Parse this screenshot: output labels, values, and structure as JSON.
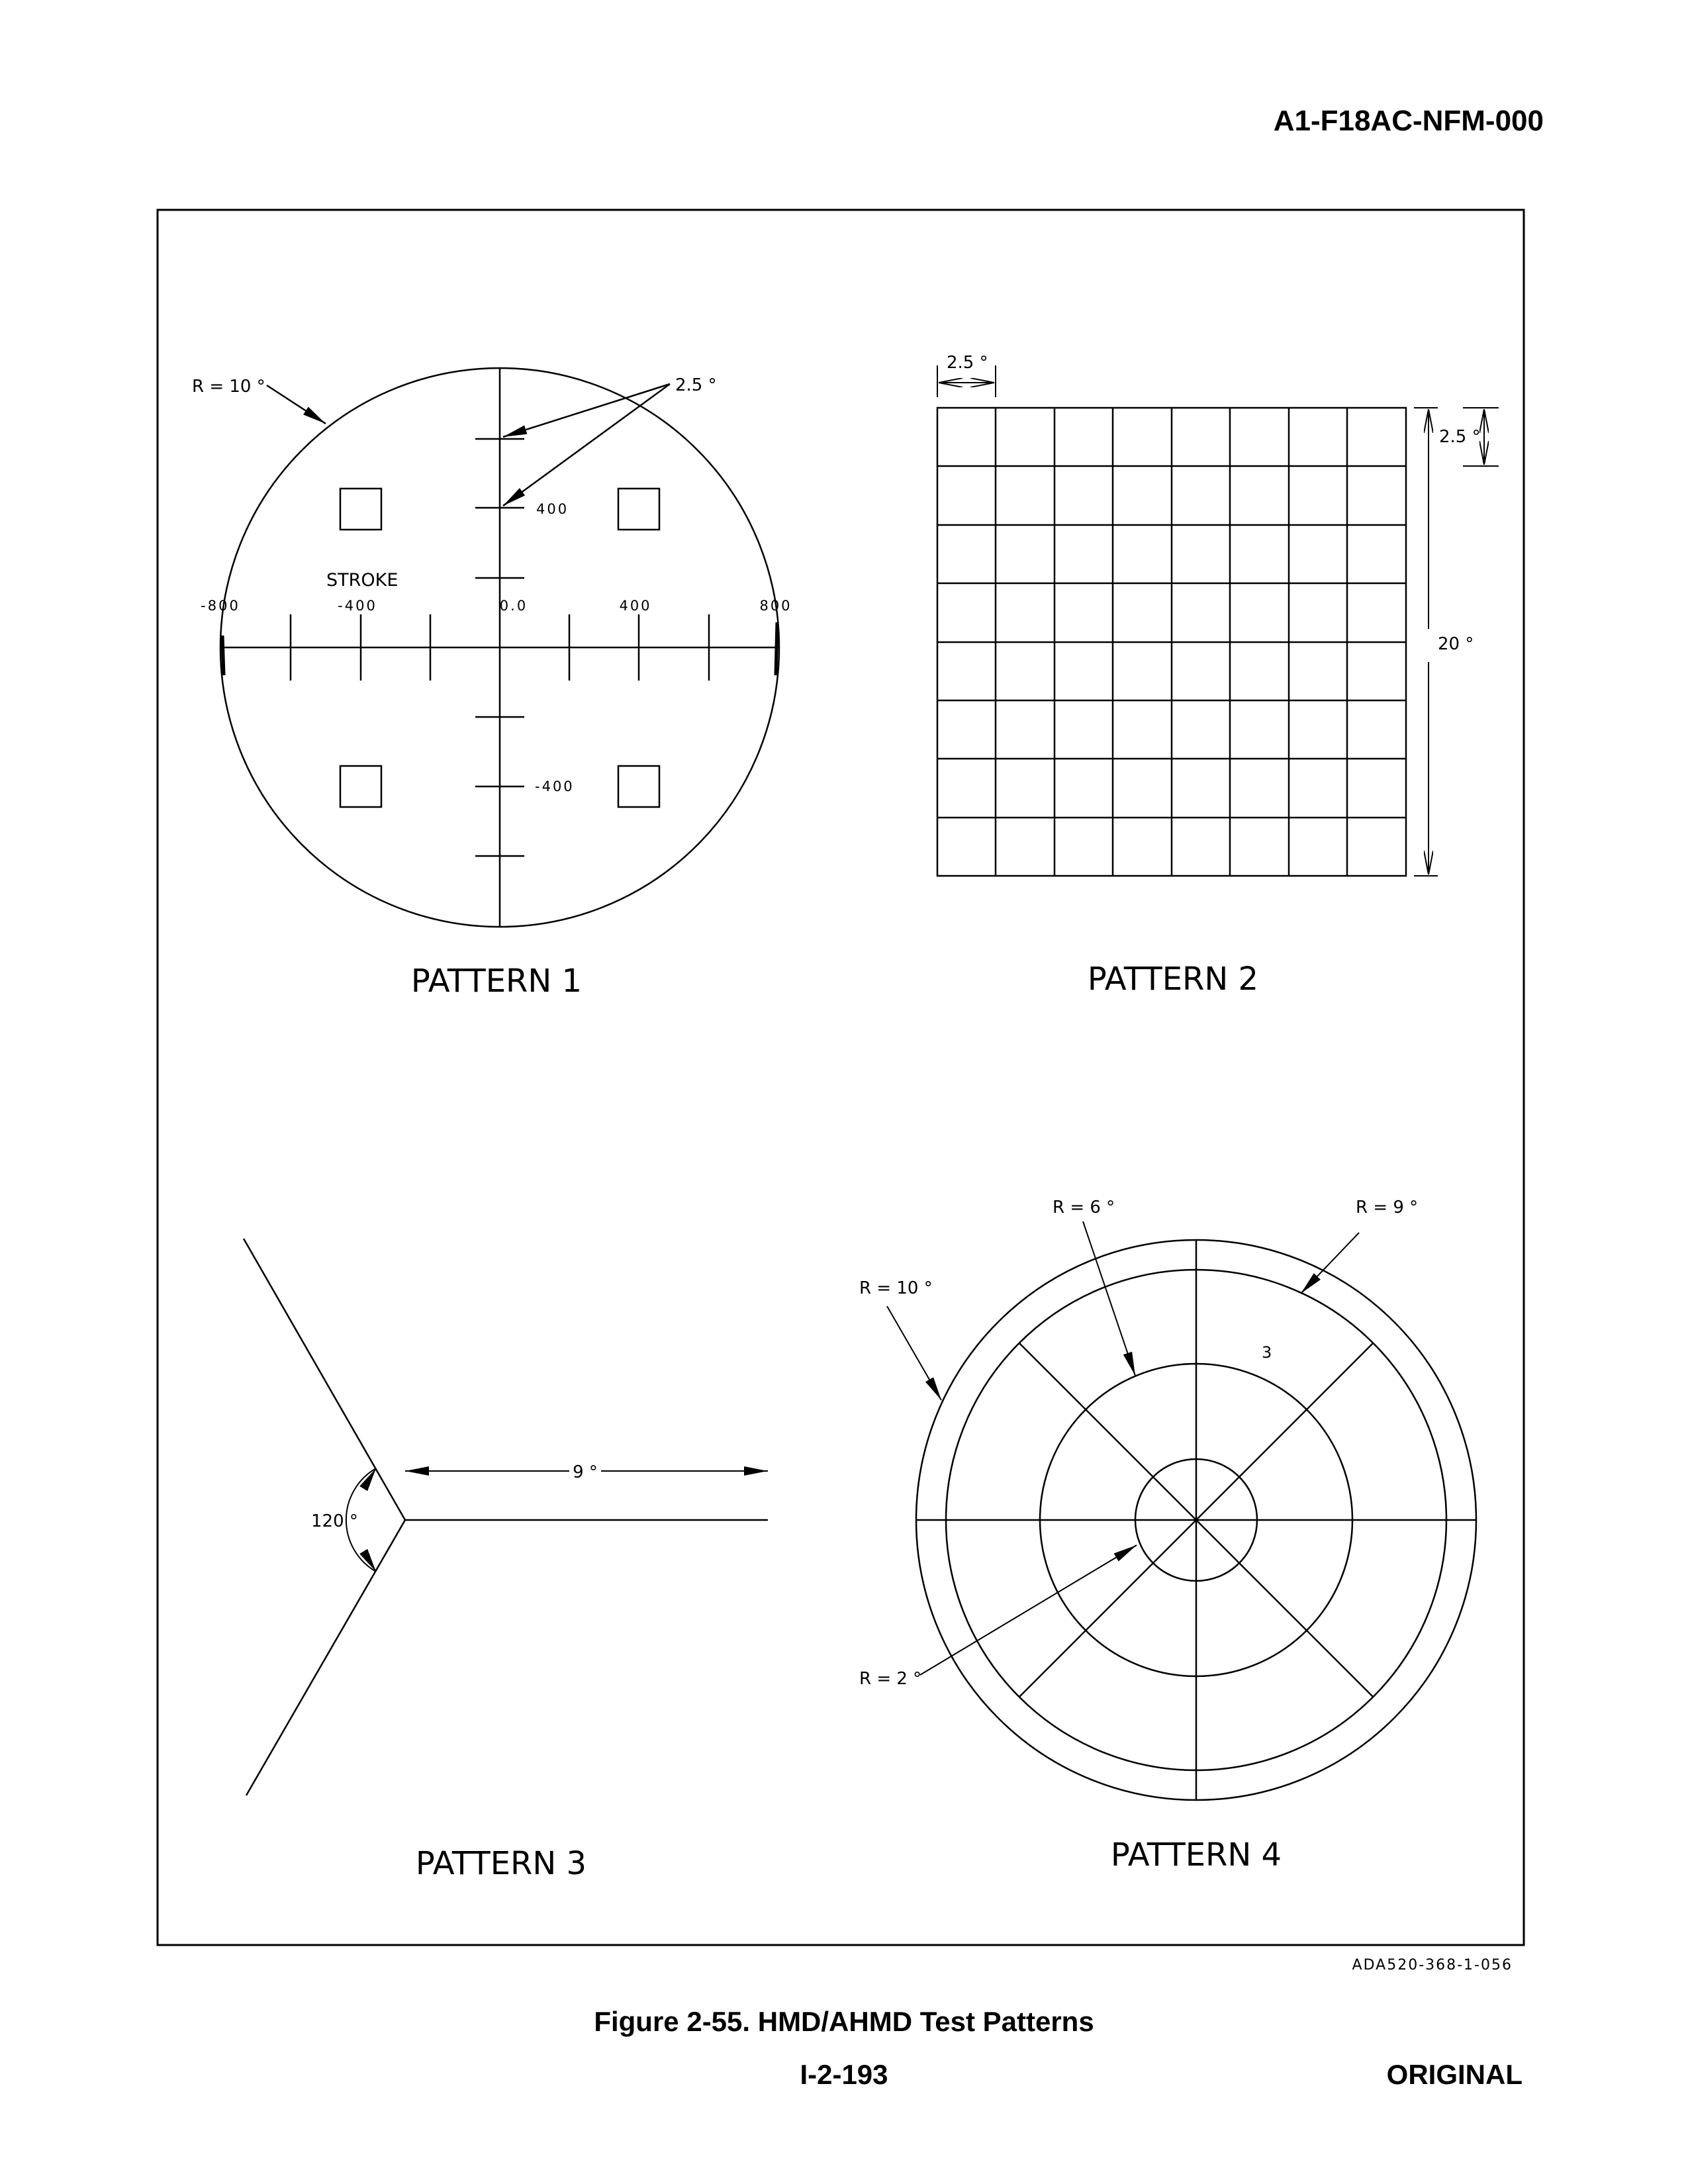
{
  "header": {
    "doc_id": "A1-F18AC-NFM-000"
  },
  "footer": {
    "figure_caption": "Figure 2-55. HMD/AHMD Test Patterns",
    "page_number": "I-2-193",
    "status": "ORIGINAL"
  },
  "figure": {
    "drawing_id": "ADA520-368-1-056",
    "pattern1": {
      "title": "PATTERN 1",
      "radius_label": "R = 10 °",
      "tick_spacing_label": "2.5 °",
      "mode_label": "STROKE",
      "x_labels": [
        "-800",
        "-400",
        "0.0",
        "400",
        "800"
      ],
      "y_labels": [
        "400",
        "-400"
      ]
    },
    "pattern2": {
      "title": "PATTERN 2",
      "cell_width_label": "2.5 °",
      "cell_height_label": "2.5 °",
      "total_height_label": "20 °",
      "rows": 8,
      "columns": 8
    },
    "pattern3": {
      "title": "PATTERN 3",
      "angle_label": "120 °",
      "length_label": "9 °"
    },
    "pattern4": {
      "title": "PATTERN 4",
      "r10_label": "R = 10 °",
      "r9_label": "R = 9 °",
      "r6_label": "R = 6 °",
      "r2_label": "R = 2 °",
      "sector_label": "3"
    }
  }
}
